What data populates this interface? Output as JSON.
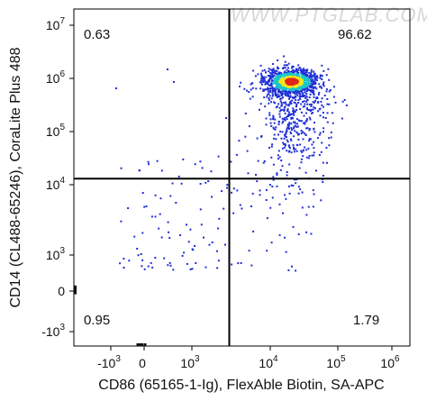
{
  "chart_data": {
    "type": "scatter",
    "subtype": "flow-cytometry-density-dotplot",
    "xlabel": "CD86 (65165-1-Ig), FlexAble Biotin, SA-APC",
    "ylabel": "CD14 (CL488-65246), CoraLite Plus 488",
    "x_scale": "biexponential",
    "y_scale": "biexponential",
    "x_ticks": [
      {
        "base": "-10",
        "exp": "3"
      },
      {
        "base": "0",
        "exp": ""
      },
      {
        "base": "10",
        "exp": "3"
      },
      {
        "base": "10",
        "exp": "4"
      },
      {
        "base": "10",
        "exp": "5"
      },
      {
        "base": "10",
        "exp": "6"
      }
    ],
    "y_ticks": [
      {
        "base": "-10",
        "exp": "3"
      },
      {
        "base": "0",
        "exp": ""
      },
      {
        "base": "10",
        "exp": "3"
      },
      {
        "base": "10",
        "exp": "4"
      },
      {
        "base": "10",
        "exp": "5"
      },
      {
        "base": "10",
        "exp": "6"
      },
      {
        "base": "10",
        "exp": "7"
      }
    ],
    "gate": {
      "x": 3000,
      "y": 13000
    },
    "quadrants": {
      "upper_left": "0.63",
      "upper_right": "96.62",
      "lower_left": "0.95",
      "lower_right": "1.79"
    },
    "population": {
      "center_x": 20000,
      "center_y": 900000
    },
    "watermark": "WWW.PTGLAB.COM",
    "colors": {
      "density_low": "#1f2fd6",
      "density_mid": "#19c7c9",
      "density_high": "#f5e61c",
      "density_peak": "#e0251b",
      "gate_line": "#000000"
    },
    "grid": false
  }
}
